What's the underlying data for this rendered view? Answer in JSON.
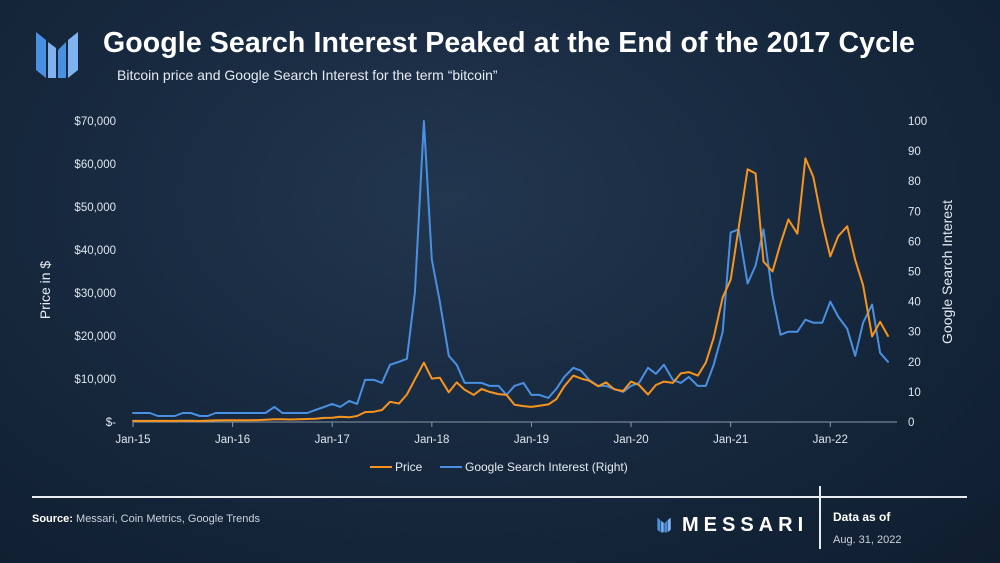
{
  "header": {
    "title": "Google Search Interest Peaked at the End of the 2017 Cycle",
    "subtitle": "Bitcoin price and Google Search Interest for the term “bitcoin”"
  },
  "colors": {
    "price": "#f7941d",
    "search": "#4a90e2",
    "logo": "#4a90e2"
  },
  "chart_data": {
    "type": "line",
    "title": "Google Search Interest Peaked at the End of the 2017 Cycle",
    "subtitle": "Bitcoin price and Google Search Interest for the term “bitcoin”",
    "xlabel": "",
    "ylabel": "Price in $",
    "y2label": "Google Search Interest",
    "ylim": [
      0,
      70000
    ],
    "y2lim": [
      0,
      100
    ],
    "y_ticks": [
      "$70,000",
      "$60,000",
      "$50,000",
      "$40,000",
      "$30,000",
      "$20,000",
      "$10,000",
      "$-"
    ],
    "y2_ticks": [
      "100",
      "90",
      "80",
      "70",
      "60",
      "50",
      "40",
      "30",
      "20",
      "10",
      "0"
    ],
    "x_ticks": [
      "Jan-15",
      "Jan-16",
      "Jan-17",
      "Jan-18",
      "Jan-19",
      "Jan-20",
      "Jan-21",
      "Jan-22"
    ],
    "legend": [
      "Price",
      "Google Search Interest (Right)"
    ],
    "legend_position": "bottom",
    "series": [
      {
        "name": "Price",
        "axis": "left",
        "x": [
          2015.0,
          2015.08,
          2015.17,
          2015.25,
          2015.33,
          2015.42,
          2015.5,
          2015.58,
          2015.67,
          2015.75,
          2015.83,
          2015.92,
          2016.0,
          2016.08,
          2016.17,
          2016.25,
          2016.33,
          2016.42,
          2016.5,
          2016.58,
          2016.67,
          2016.75,
          2016.83,
          2016.92,
          2017.0,
          2017.08,
          2017.17,
          2017.25,
          2017.33,
          2017.42,
          2017.5,
          2017.58,
          2017.67,
          2017.75,
          2017.83,
          2017.92,
          2018.0,
          2018.08,
          2018.17,
          2018.25,
          2018.33,
          2018.42,
          2018.5,
          2018.58,
          2018.67,
          2018.75,
          2018.83,
          2018.92,
          2019.0,
          2019.08,
          2019.17,
          2019.25,
          2019.33,
          2019.42,
          2019.5,
          2019.58,
          2019.67,
          2019.75,
          2019.83,
          2019.92,
          2020.0,
          2020.08,
          2020.17,
          2020.25,
          2020.33,
          2020.42,
          2020.5,
          2020.58,
          2020.67,
          2020.75,
          2020.83,
          2020.92,
          2021.0,
          2021.08,
          2021.17,
          2021.25,
          2021.33,
          2021.42,
          2021.5,
          2021.58,
          2021.67,
          2021.75,
          2021.83,
          2021.92,
          2022.0,
          2022.08,
          2022.17,
          2022.25,
          2022.33,
          2022.42,
          2022.5,
          2022.58
        ],
        "values": [
          250,
          250,
          250,
          250,
          250,
          250,
          280,
          280,
          230,
          320,
          370,
          430,
          430,
          430,
          430,
          450,
          530,
          650,
          650,
          580,
          620,
          700,
          740,
          960,
          1000,
          1200,
          1100,
          1400,
          2300,
          2400,
          2800,
          4700,
          4300,
          6400,
          9900,
          13800,
          10100,
          10300,
          6900,
          9200,
          7500,
          6300,
          7700,
          7000,
          6500,
          6300,
          4000,
          3700,
          3500,
          3800,
          4100,
          5300,
          8300,
          10800,
          10100,
          9600,
          8300,
          9200,
          7600,
          7200,
          9400,
          8600,
          6400,
          8600,
          9400,
          9100,
          11300,
          11600,
          10800,
          13800,
          19600,
          29000,
          33100,
          45100,
          58800,
          57800,
          37300,
          35000,
          41500,
          47100,
          43800,
          61300,
          57000,
          46300,
          38500,
          43200,
          45500,
          37700,
          31800,
          19900,
          23300,
          20000
        ]
      },
      {
        "name": "Google Search Interest (Right)",
        "axis": "right",
        "x": [
          2015.0,
          2015.08,
          2015.17,
          2015.25,
          2015.33,
          2015.42,
          2015.5,
          2015.58,
          2015.67,
          2015.75,
          2015.83,
          2015.92,
          2016.0,
          2016.08,
          2016.17,
          2016.25,
          2016.33,
          2016.42,
          2016.5,
          2016.58,
          2016.67,
          2016.75,
          2016.83,
          2016.92,
          2017.0,
          2017.08,
          2017.17,
          2017.25,
          2017.33,
          2017.42,
          2017.5,
          2017.58,
          2017.67,
          2017.75,
          2017.83,
          2017.92,
          2018.0,
          2018.08,
          2018.17,
          2018.25,
          2018.33,
          2018.42,
          2018.5,
          2018.58,
          2018.67,
          2018.75,
          2018.83,
          2018.92,
          2019.0,
          2019.08,
          2019.17,
          2019.25,
          2019.33,
          2019.42,
          2019.5,
          2019.58,
          2019.67,
          2019.75,
          2019.83,
          2019.92,
          2020.0,
          2020.08,
          2020.17,
          2020.25,
          2020.33,
          2020.42,
          2020.5,
          2020.58,
          2020.67,
          2020.75,
          2020.83,
          2020.92,
          2021.0,
          2021.08,
          2021.17,
          2021.25,
          2021.33,
          2021.42,
          2021.5,
          2021.58,
          2021.67,
          2021.75,
          2021.83,
          2021.92,
          2022.0,
          2022.08,
          2022.17,
          2022.25,
          2022.33,
          2022.42,
          2022.5,
          2022.58
        ],
        "values": [
          3,
          3,
          3,
          2,
          2,
          2,
          3,
          3,
          2,
          2,
          3,
          3,
          3,
          3,
          3,
          3,
          3,
          5,
          3,
          3,
          3,
          3,
          4,
          5,
          6,
          5,
          7,
          6,
          14,
          14,
          13,
          19,
          20,
          21,
          43,
          100,
          54,
          40,
          22,
          19,
          13,
          13,
          13,
          12,
          12,
          9,
          12,
          13,
          9,
          9,
          8,
          11,
          15,
          18,
          17,
          14,
          12,
          12,
          11,
          10,
          12,
          13,
          18,
          16,
          19,
          14,
          13,
          15,
          12,
          12,
          19,
          30,
          63,
          64,
          46,
          52,
          64,
          42,
          29,
          30,
          30,
          34,
          33,
          33,
          40,
          35,
          31,
          22,
          33,
          39,
          23,
          20
        ]
      }
    ]
  },
  "footer": {
    "source_label": "Source:",
    "source_text": "Messari, Coin Metrics, Google Trends",
    "brand": "MESSARI",
    "data_as_of_label": "Data as of",
    "date": "Aug. 31, 2022"
  }
}
